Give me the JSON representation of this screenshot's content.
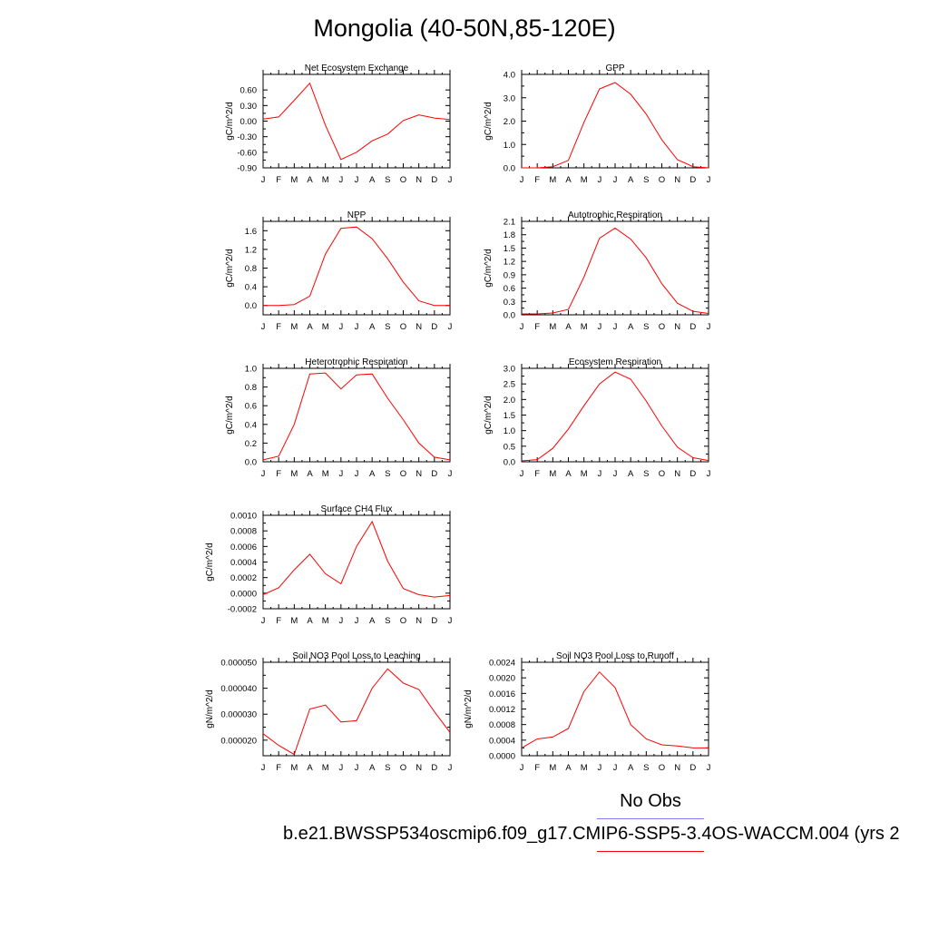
{
  "title": "Mongolia (40-50N,85-120E)",
  "legend": {
    "obs_label": "No Obs",
    "obs_color": "#7d7dff",
    "case_label": "b.e21.BWSSP534oscmip6.f09_g17.CMIP6-SSP5-3.4OS-WACCM.004 (yrs 2",
    "case_color": "#ff0000"
  },
  "months": [
    "J",
    "F",
    "M",
    "A",
    "M",
    "J",
    "J",
    "A",
    "S",
    "O",
    "N",
    "D",
    "J"
  ],
  "chart_data": [
    {
      "type": "line",
      "title": "Net Ecosystem Exchange",
      "ylabel": "gC/m^2/d",
      "ylim": [
        -0.9,
        0.9
      ],
      "yticks": [
        -0.9,
        -0.6,
        -0.3,
        0.0,
        0.3,
        0.6
      ],
      "ytick_labels": [
        "-0.90",
        "-0.60",
        "-0.30",
        "0.00",
        "0.30",
        "0.60"
      ],
      "values": [
        0.04,
        0.08,
        0.4,
        0.73,
        -0.08,
        -0.74,
        -0.6,
        -0.38,
        -0.25,
        0.01,
        0.12,
        0.06,
        0.03
      ]
    },
    {
      "type": "line",
      "title": "GPP",
      "ylabel": "gC/m^2/d",
      "ylim": [
        0,
        4
      ],
      "yticks": [
        0,
        1,
        2,
        3,
        4
      ],
      "ytick_labels": [
        "0.0",
        "1.0",
        "2.0",
        "3.0",
        "4.0"
      ],
      "values": [
        0.0,
        0.0,
        0.05,
        0.32,
        1.95,
        3.38,
        3.65,
        3.15,
        2.3,
        1.2,
        0.35,
        0.05,
        0.0
      ]
    },
    {
      "type": "line",
      "title": "NPP",
      "ylabel": "gC/m^2/d",
      "ylim": [
        -0.2,
        1.8
      ],
      "yticks": [
        0.0,
        0.4,
        0.8,
        1.2,
        1.6
      ],
      "ytick_labels": [
        "0.0",
        "0.4",
        "0.8",
        "1.2",
        "1.6"
      ],
      "values": [
        0.0,
        0.0,
        0.02,
        0.2,
        1.1,
        1.65,
        1.68,
        1.43,
        1.0,
        0.5,
        0.1,
        0.0,
        0.0
      ]
    },
    {
      "type": "line",
      "title": "Autotrophic Respiration",
      "ylabel": "gC/m^2/d",
      "ylim": [
        0,
        2.1
      ],
      "yticks": [
        0,
        0.3,
        0.6,
        0.9,
        1.2,
        1.5,
        1.8,
        2.1
      ],
      "ytick_labels": [
        "0.0",
        "0.3",
        "0.6",
        "0.9",
        "1.2",
        "1.5",
        "1.8",
        "2.1"
      ],
      "values": [
        0.02,
        0.02,
        0.04,
        0.12,
        0.85,
        1.72,
        1.95,
        1.7,
        1.28,
        0.7,
        0.26,
        0.08,
        0.03
      ]
    },
    {
      "type": "line",
      "title": "Heterotrophic Respiration",
      "ylabel": "gC/m^2/d",
      "ylim": [
        0,
        1
      ],
      "yticks": [
        0,
        0.2,
        0.4,
        0.6,
        0.8,
        1.0
      ],
      "ytick_labels": [
        "0.0",
        "0.2",
        "0.4",
        "0.6",
        "0.8",
        "1.0"
      ],
      "values": [
        0.02,
        0.06,
        0.4,
        0.94,
        0.95,
        0.78,
        0.93,
        0.94,
        0.68,
        0.45,
        0.2,
        0.05,
        0.02
      ]
    },
    {
      "type": "line",
      "title": "Ecosystem Respiration",
      "ylabel": "gC/m^2/d",
      "ylim": [
        0,
        3
      ],
      "yticks": [
        0,
        0.5,
        1.0,
        1.5,
        2.0,
        2.5,
        3.0
      ],
      "ytick_labels": [
        "0.0",
        "0.5",
        "1.0",
        "1.5",
        "2.0",
        "2.5",
        "3.0"
      ],
      "values": [
        0.03,
        0.07,
        0.43,
        1.05,
        1.8,
        2.5,
        2.88,
        2.65,
        1.95,
        1.15,
        0.47,
        0.13,
        0.04
      ]
    },
    {
      "type": "line",
      "title": "Surface CH4 Flux",
      "ylabel": "gC/m^2/d",
      "ylim": [
        -0.0002,
        0.001
      ],
      "yticks": [
        -0.0002,
        0.0,
        0.0002,
        0.0004,
        0.0006,
        0.0008,
        0.001
      ],
      "ytick_labels": [
        "-0.0002",
        "0.0000",
        "0.0002",
        "0.0004",
        "0.0006",
        "0.0008",
        "0.0010"
      ],
      "values": [
        -2e-05,
        7e-05,
        0.0003,
        0.0005,
        0.00025,
        0.00012,
        0.0006,
        0.00092,
        0.00041,
        6e-05,
        -2e-05,
        -5e-05,
        -3e-05
      ]
    },
    {
      "type": "line",
      "title": "Soil NO3 Pool Loss to Leaching",
      "ylabel": "gN/m^2/d",
      "ylim": [
        1.4e-05,
        5e-05
      ],
      "yticks": [
        2e-05,
        3e-05,
        4e-05,
        5e-05
      ],
      "ytick_labels": [
        "0.000020",
        "0.000030",
        "0.000040",
        "0.000050"
      ],
      "values": [
        2.25e-05,
        1.8e-05,
        1.45e-05,
        3.2e-05,
        3.35e-05,
        2.7e-05,
        2.75e-05,
        4e-05,
        4.75e-05,
        4.2e-05,
        3.95e-05,
        3.1e-05,
        2.3e-05
      ]
    },
    {
      "type": "line",
      "title": "Soil NO3 Pool Loss to Runoff",
      "ylabel": "gN/m^2/d",
      "ylim": [
        0,
        0.0024
      ],
      "yticks": [
        0,
        0.0004,
        0.0008,
        0.0012,
        0.0016,
        0.002,
        0.0024
      ],
      "ytick_labels": [
        "0.0000",
        "0.0004",
        "0.0008",
        "0.0012",
        "0.0016",
        "0.0020",
        "0.0024"
      ],
      "values": [
        0.0002,
        0.00043,
        0.00048,
        0.0007,
        0.00165,
        0.00215,
        0.00175,
        0.0008,
        0.00043,
        0.00028,
        0.00025,
        0.0002,
        0.0002
      ]
    }
  ]
}
